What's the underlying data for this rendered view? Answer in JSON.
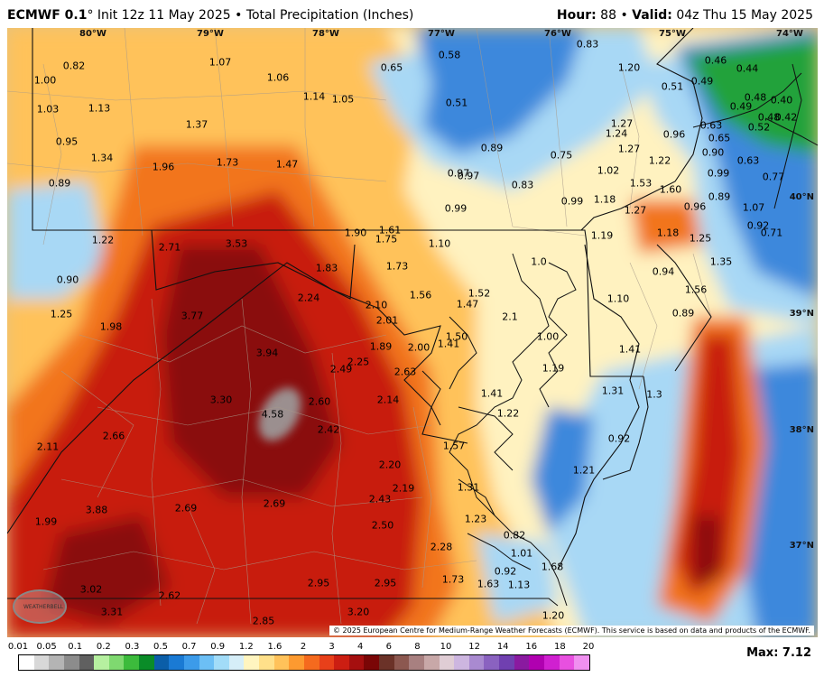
{
  "header": {
    "model": "ECMWF 0.1",
    "degree": "°",
    "init": "Init 12z 11 May 2025",
    "bullet": "•",
    "product": "Total Precipitation (Inches)",
    "hour_label": "Hour:",
    "hour_value": "88",
    "valid_label": "Valid:",
    "valid_value": "04z Thu 15 May 2025"
  },
  "axes": {
    "longitudes": [
      "80°W",
      "79°W",
      "78°W",
      "77°W",
      "76°W",
      "75°W",
      "74°W"
    ],
    "latitudes": [
      "40°N",
      "39°N",
      "38°N",
      "37°N"
    ]
  },
  "values": [
    [
      "0.82",
      82,
      73
    ],
    [
      "1.00",
      50,
      89
    ],
    [
      "1.03",
      53,
      121
    ],
    [
      "1.13",
      110,
      120
    ],
    [
      "0.95",
      74,
      157
    ],
    [
      "1.34",
      113,
      175
    ],
    [
      "0.89",
      66,
      203
    ],
    [
      "1.07",
      244,
      69
    ],
    [
      "1.06",
      308,
      86
    ],
    [
      "1.37",
      218,
      138
    ],
    [
      "1.96",
      181,
      185
    ],
    [
      "1.73",
      252,
      180
    ],
    [
      "1.47",
      318,
      182
    ],
    [
      "1.14",
      348,
      107
    ],
    [
      "1.05",
      380,
      110
    ],
    [
      "0.65",
      434,
      75
    ],
    [
      "0.58",
      498,
      61
    ],
    [
      "0.51",
      506,
      114
    ],
    [
      "0.89",
      545,
      164
    ],
    [
      "0.97",
      508,
      192
    ],
    [
      "0.97",
      519,
      195
    ],
    [
      "0.83",
      579,
      205
    ],
    [
      "0.75",
      622,
      172
    ],
    [
      "0.99",
      634,
      223
    ],
    [
      "0.99",
      505,
      231
    ],
    [
      "0.83",
      651,
      49
    ],
    [
      "1.20",
      697,
      75
    ],
    [
      "1.27",
      689,
      137
    ],
    [
      "1.24",
      683,
      148
    ],
    [
      "1.27",
      697,
      165
    ],
    [
      "1.02",
      674,
      189
    ],
    [
      "1.22",
      731,
      178
    ],
    [
      "0.96",
      747,
      149
    ],
    [
      "1.53",
      710,
      203
    ],
    [
      "1.60",
      743,
      210
    ],
    [
      "1.18",
      670,
      221
    ],
    [
      "1.27",
      704,
      233
    ],
    [
      "0.96",
      770,
      229
    ],
    [
      "0.46",
      793,
      67
    ],
    [
      "0.44",
      828,
      76
    ],
    [
      "0.51",
      745,
      96
    ],
    [
      "0.49",
      778,
      90
    ],
    [
      "0.48",
      837,
      108
    ],
    [
      "0.49",
      821,
      118
    ],
    [
      "0.40",
      866,
      111
    ],
    [
      "0.48",
      852,
      130
    ],
    [
      "0.42",
      871,
      130
    ],
    [
      "0.52",
      841,
      141
    ],
    [
      "0.63",
      788,
      139
    ],
    [
      "0.65",
      797,
      153
    ],
    [
      "0.90",
      790,
      169
    ],
    [
      "0.63",
      829,
      178
    ],
    [
      "0.99",
      796,
      192
    ],
    [
      "0.77",
      857,
      196
    ],
    [
      "0.89",
      797,
      218
    ],
    [
      "1.07",
      835,
      230
    ],
    [
      "0.92",
      840,
      250
    ],
    [
      "0.71",
      855,
      258
    ],
    [
      "1.22",
      114,
      266
    ],
    [
      "0.90",
      75,
      310
    ],
    [
      "2.71",
      188,
      274
    ],
    [
      "3.53",
      262,
      270
    ],
    [
      "1.83",
      362,
      297
    ],
    [
      "1.90",
      394,
      258
    ],
    [
      "1.61",
      432,
      255
    ],
    [
      "1.75",
      428,
      265
    ],
    [
      "1.10",
      487,
      270
    ],
    [
      "1.73",
      440,
      295
    ],
    [
      "1.56",
      466,
      327
    ],
    [
      "1.52",
      531,
      325
    ],
    [
      "1.47",
      518,
      337
    ],
    [
      "1.0",
      597,
      290
    ],
    [
      "1.19",
      667,
      261
    ],
    [
      "1.18",
      740,
      258
    ],
    [
      "1.25",
      776,
      264
    ],
    [
      "1.35",
      799,
      290
    ],
    [
      "0.94",
      735,
      301
    ],
    [
      "1.56",
      771,
      321
    ],
    [
      "1.10",
      685,
      331
    ],
    [
      "0.89",
      757,
      347
    ],
    [
      "1.25",
      68,
      348
    ],
    [
      "1.98",
      123,
      362
    ],
    [
      "3.77",
      213,
      350
    ],
    [
      "2.24",
      342,
      330
    ],
    [
      "2.10",
      417,
      338
    ],
    [
      "2.01",
      429,
      355
    ],
    [
      "1.89",
      422,
      384
    ],
    [
      "2.00",
      464,
      385
    ],
    [
      "1.41",
      497,
      381
    ],
    [
      "1.50",
      506,
      373
    ],
    [
      "2.1",
      565,
      351
    ],
    [
      "1.00",
      607,
      373
    ],
    [
      "1.19",
      613,
      408
    ],
    [
      "1.41",
      698,
      387
    ],
    [
      "3.94",
      296,
      391
    ],
    [
      "2.49",
      378,
      409
    ],
    [
      "2.25",
      397,
      401
    ],
    [
      "2.63",
      449,
      412
    ],
    [
      "3.30",
      245,
      443
    ],
    [
      "4.58",
      302,
      459
    ],
    [
      "2.60",
      354,
      445
    ],
    [
      "2.14",
      430,
      443
    ],
    [
      "1.41",
      545,
      436
    ],
    [
      "1.22",
      563,
      458
    ],
    [
      "1.31",
      679,
      433
    ],
    [
      "1.3",
      725,
      437
    ],
    [
      "2.11",
      53,
      495
    ],
    [
      "2.66",
      126,
      483
    ],
    [
      "2.42",
      364,
      476
    ],
    [
      "1.57",
      503,
      494
    ],
    [
      "0.92",
      686,
      486
    ],
    [
      "2.20",
      432,
      515
    ],
    [
      "1.21",
      647,
      521
    ],
    [
      "1.31",
      519,
      540
    ],
    [
      "2.19",
      447,
      541
    ],
    [
      "3.88",
      107,
      565
    ],
    [
      "2.69",
      206,
      563
    ],
    [
      "2.69",
      304,
      558
    ],
    [
      "2.43",
      421,
      553
    ],
    [
      "1.99",
      51,
      578
    ],
    [
      "2.50",
      424,
      582
    ],
    [
      "1.23",
      527,
      575
    ],
    [
      "0.82",
      570,
      593
    ],
    [
      "1.01",
      578,
      613
    ],
    [
      "2.28",
      489,
      606
    ],
    [
      "0.92",
      560,
      633
    ],
    [
      "1.68",
      612,
      628
    ],
    [
      "1.73",
      502,
      642
    ],
    [
      "1.63",
      541,
      647
    ],
    [
      "1.13",
      575,
      648
    ],
    [
      "3.02",
      101,
      653
    ],
    [
      "2.62",
      188,
      660
    ],
    [
      "2.95",
      353,
      646
    ],
    [
      "2.95",
      427,
      646
    ],
    [
      "3.31",
      124,
      678
    ],
    [
      "2.85",
      292,
      688
    ],
    [
      "3.20",
      397,
      678
    ],
    [
      "1.20",
      613,
      682
    ]
  ],
  "copyright": "© 2025 European Centre for Medium-Range Weather Forecasts (ECMWF). This service is based on data and products of the ECMWF.",
  "logo_text": "WEATHERBELL",
  "legend": {
    "labels": [
      "0.01",
      "0.05",
      "0.1",
      "0.2",
      "0.3",
      "0.5",
      "0.7",
      "0.9",
      "1.2",
      "1.6",
      "2",
      "3",
      "4",
      "6",
      "8",
      "10",
      "12",
      "14",
      "16",
      "18",
      "20"
    ],
    "colors": [
      "#ffffff",
      "#d8d8d8",
      "#b4b4b4",
      "#8c8c8c",
      "#606060",
      "#b6f0a0",
      "#7fd970",
      "#3cbb3c",
      "#0a8c28",
      "#0b5ea8",
      "#1a7ad4",
      "#3c9bea",
      "#6cbff5",
      "#a2dcf8",
      "#d6eef8",
      "#fff5c0",
      "#ffe08a",
      "#ffc25a",
      "#fd9a30",
      "#f56a1e",
      "#e8401a",
      "#cc1e12",
      "#a50f0f",
      "#7a0606",
      "#6b3228",
      "#8c5850",
      "#a88080",
      "#c8a8a8",
      "#e0cdd5",
      "#cdb6e0",
      "#a98ad0",
      "#8a62c0",
      "#7040b0",
      "#8a1aa0",
      "#b000b0",
      "#d020d0",
      "#e850e0",
      "#f090f0"
    ]
  },
  "max": {
    "label": "Max:",
    "value": "7.12"
  },
  "colors": {
    "heavy": "#8a0a0a",
    "red": "#c81e10",
    "orange": "#f2741e",
    "gold": "#ffc25a",
    "cream": "#fff2c0",
    "lightblue": "#a8d8f5",
    "blue": "#3c88dc",
    "darkblue": "#1e5ab4",
    "green": "#22a23a",
    "grey": "#9b8f8f"
  }
}
